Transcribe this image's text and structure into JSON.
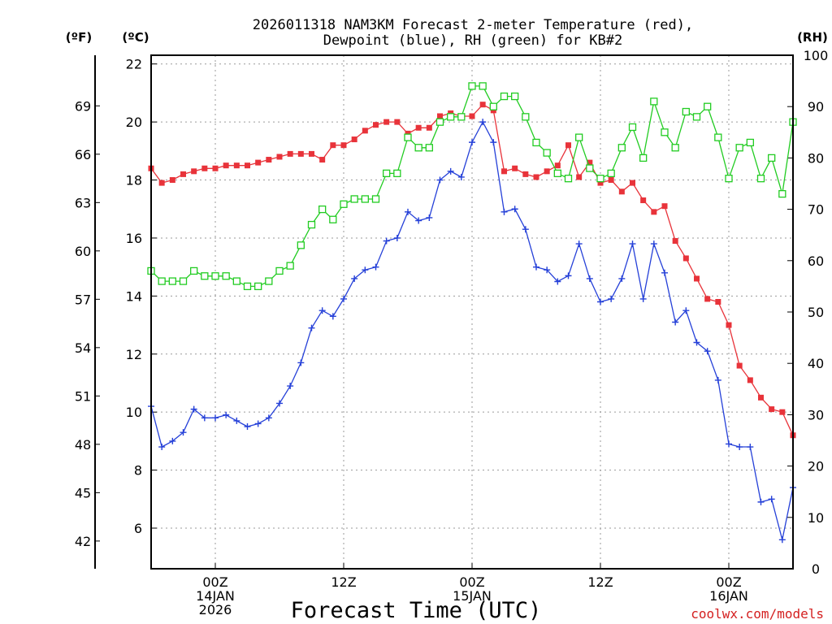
{
  "chart_data": {
    "type": "line",
    "title_line1": "2026011318 NAM3KM Forecast 2-meter Temperature (red),",
    "title_line2": "Dewpoint (blue), RH (green) for KB#2",
    "xlabel": "Forecast Time (UTC)",
    "watermark": "coolwx.com/models",
    "unit_f": "(ºF)",
    "unit_c": "(ºC)",
    "unit_rh": "(RH)",
    "x_hours_range": [
      0,
      60
    ],
    "ylim_c": [
      4.6,
      22.3
    ],
    "ylim_rh": [
      0,
      100
    ],
    "x_ticks": [
      {
        "hour": 6,
        "lines": [
          "00Z",
          "14JAN",
          "2026"
        ]
      },
      {
        "hour": 18,
        "lines": [
          "12Z"
        ]
      },
      {
        "hour": 30,
        "lines": [
          "00Z",
          "15JAN"
        ]
      },
      {
        "hour": 42,
        "lines": [
          "12Z"
        ]
      },
      {
        "hour": 54,
        "lines": [
          "00Z",
          "16JAN"
        ]
      }
    ],
    "c_ticks": [
      "6",
      "8",
      "10",
      "12",
      "14",
      "16",
      "18",
      "20",
      "22"
    ],
    "f_ticks": [
      "42",
      "45",
      "48",
      "51",
      "54",
      "57",
      "60",
      "63",
      "66",
      "69"
    ],
    "rh_ticks": [
      "0",
      "10",
      "20",
      "30",
      "40",
      "50",
      "60",
      "70",
      "80",
      "90",
      "100"
    ],
    "series": [
      {
        "name": "2-meter Temperature",
        "unit": "C",
        "color": "#e8333a",
        "marker": "filled-square",
        "values": [
          18.4,
          17.9,
          18.0,
          18.2,
          18.3,
          18.4,
          18.4,
          18.5,
          18.5,
          18.5,
          18.6,
          18.7,
          18.8,
          18.9,
          18.9,
          18.9,
          18.7,
          19.2,
          19.2,
          19.4,
          19.7,
          19.9,
          20.0,
          20.0,
          19.6,
          19.8,
          19.8,
          20.2,
          20.3,
          20.2,
          20.2,
          20.6,
          20.4,
          18.3,
          18.4,
          18.2,
          18.1,
          18.3,
          18.5,
          19.2,
          18.1,
          18.6,
          17.9,
          18.0,
          17.6,
          17.9,
          17.3,
          16.9,
          17.1,
          15.9,
          15.3,
          14.6,
          13.9,
          13.8,
          13.0,
          11.6,
          11.1,
          10.5,
          10.1,
          10.0,
          9.2
        ]
      },
      {
        "name": "Dewpoint",
        "unit": "C",
        "color": "#2540d8",
        "marker": "plus",
        "values": [
          10.2,
          8.8,
          9.0,
          9.3,
          10.1,
          9.8,
          9.8,
          9.9,
          9.7,
          9.5,
          9.6,
          9.8,
          10.3,
          10.9,
          11.7,
          12.9,
          13.5,
          13.3,
          13.9,
          14.6,
          14.9,
          15.0,
          15.9,
          16.0,
          16.9,
          16.6,
          16.7,
          18.0,
          18.3,
          18.1,
          19.3,
          20.0,
          19.3,
          16.9,
          17.0,
          16.3,
          15.0,
          14.9,
          14.5,
          14.7,
          15.8,
          14.6,
          13.8,
          13.9,
          14.6,
          15.8,
          13.9,
          15.8,
          14.8,
          13.1,
          13.5,
          12.4,
          12.1,
          11.1,
          8.9,
          8.8,
          8.8,
          6.9,
          7.0,
          5.6,
          7.4
        ]
      },
      {
        "name": "RH",
        "unit": "%",
        "color": "#22cc22",
        "marker": "open-square",
        "values": [
          58,
          56,
          56,
          56,
          58,
          57,
          57,
          57,
          56,
          55,
          55,
          56,
          58,
          59,
          63,
          67,
          70,
          68,
          71,
          72,
          72,
          72,
          77,
          77,
          84,
          82,
          82,
          87,
          88,
          88,
          94,
          94,
          90,
          92,
          92,
          88,
          83,
          81,
          77,
          76,
          84,
          78,
          76,
          77,
          82,
          86,
          80,
          91,
          85,
          82,
          89,
          88,
          90,
          84,
          76,
          82,
          83,
          76,
          80,
          73,
          87
        ]
      }
    ]
  }
}
